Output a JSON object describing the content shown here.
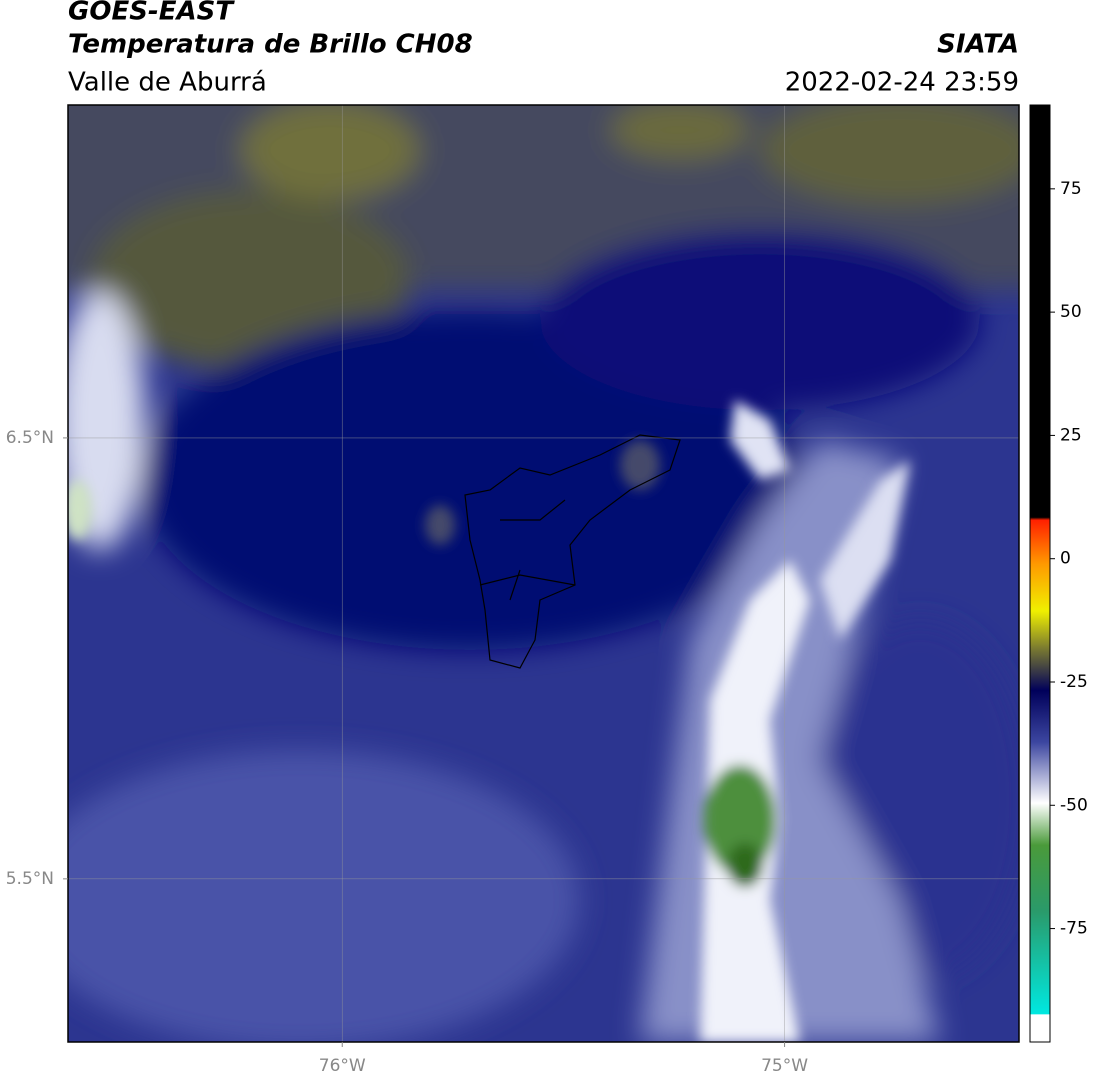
{
  "header": {
    "title": "GOES-EAST",
    "subtitle": "Temperatura de Brillo CH08",
    "region": "Valle de Aburrá",
    "source": "SIATA",
    "datetime": "2022-02-24 23:59"
  },
  "map": {
    "xlim": [
      -76.62,
      -74.47
    ],
    "ylim": [
      5.13,
      7.255
    ],
    "xticks": [
      {
        "value": -76,
        "label": "76°W"
      },
      {
        "value": -75,
        "label": "75°W"
      }
    ],
    "yticks": [
      {
        "value": 6.5,
        "label": "6.5°N"
      },
      {
        "value": 5.5,
        "label": "5.5°N"
      }
    ],
    "grid": true
  },
  "colorbar": {
    "lim": [
      -98,
      92
    ],
    "ticks": [
      75,
      50,
      25,
      0,
      -25,
      -50,
      -75
    ]
  }
}
